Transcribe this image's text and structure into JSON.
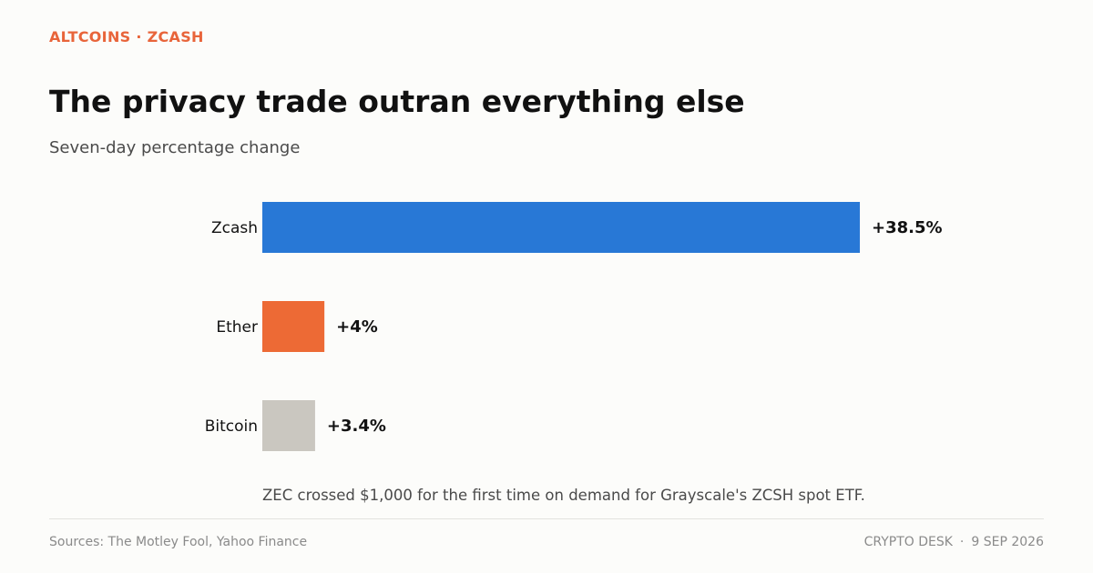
{
  "header": {
    "kicker": "ALTCOINS · ZCASH",
    "title": "The privacy trade outran everything else",
    "subtitle": "Seven-day percentage change"
  },
  "chart_data": {
    "type": "bar",
    "orientation": "horizontal",
    "categories": [
      "Zcash",
      "Ether",
      "Bitcoin"
    ],
    "values": [
      38.5,
      4,
      3.4
    ],
    "value_labels": [
      "+38.5%",
      "+4%",
      "+3.4%"
    ],
    "colors": [
      "#2878d6",
      "#ed6a35",
      "#cac7c0"
    ],
    "title": "",
    "xlabel": "",
    "ylabel": "",
    "xlim": [
      0,
      50
    ],
    "grid": false
  },
  "note": "ZEC crossed $1,000 for the first time on demand for Grayscale's ZCSH spot ETF.",
  "footer": {
    "sources": "Sources: The Motley Fool, Yahoo Finance",
    "desk": "CRYPTO DESK",
    "separator": "·",
    "date": "9 SEP 2026"
  }
}
